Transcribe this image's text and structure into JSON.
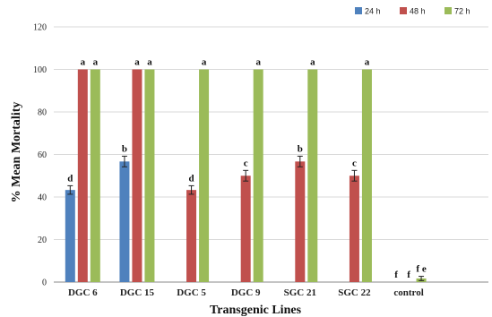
{
  "chart_data": {
    "type": "bar",
    "xlabel": "Transgenic Lines",
    "ylabel": "% Mean Mortality",
    "ylim": [
      0,
      120
    ],
    "yticks": [
      0,
      20,
      40,
      60,
      80,
      100,
      120
    ],
    "grid": "horizontal",
    "legend_position": "top-right",
    "categories": [
      "DGC 6",
      "DGC 15",
      "DGC 5",
      "DGC 9",
      "SGC 21",
      "SGC 22",
      "control"
    ],
    "series": [
      {
        "name": "24 h",
        "color": "#4f81bd",
        "values": [
          43.3,
          56.7,
          0,
          0,
          0,
          0,
          0
        ],
        "errors": [
          2,
          2.5,
          0,
          0,
          0,
          0,
          0
        ]
      },
      {
        "name": "48 h",
        "color": "#c0504d",
        "values": [
          100,
          100,
          43.3,
          50,
          56.7,
          50,
          0
        ],
        "errors": [
          0,
          0,
          2,
          2.5,
          2.5,
          2.5,
          0
        ]
      },
      {
        "name": "72 h",
        "color": "#9bbb59",
        "values": [
          100,
          100,
          100,
          100,
          100,
          100,
          1.7
        ],
        "errors": [
          0,
          0,
          0,
          0,
          0,
          0,
          1
        ]
      }
    ],
    "significance_letters": [
      {
        "category": "DGC 6",
        "labels": [
          "d",
          "a",
          "a"
        ]
      },
      {
        "category": "DGC 15",
        "labels": [
          "b",
          "a",
          "a"
        ]
      },
      {
        "category": "DGC 5",
        "labels": [
          "",
          "d",
          "a"
        ]
      },
      {
        "category": "DGC 9",
        "labels": [
          "",
          "c",
          "a"
        ]
      },
      {
        "category": "SGC 21",
        "labels": [
          "",
          "b",
          "a"
        ]
      },
      {
        "category": "SGC 22",
        "labels": [
          "",
          "c",
          "a"
        ]
      },
      {
        "category": "control",
        "labels": [
          "f",
          "f",
          "f e"
        ]
      }
    ]
  }
}
